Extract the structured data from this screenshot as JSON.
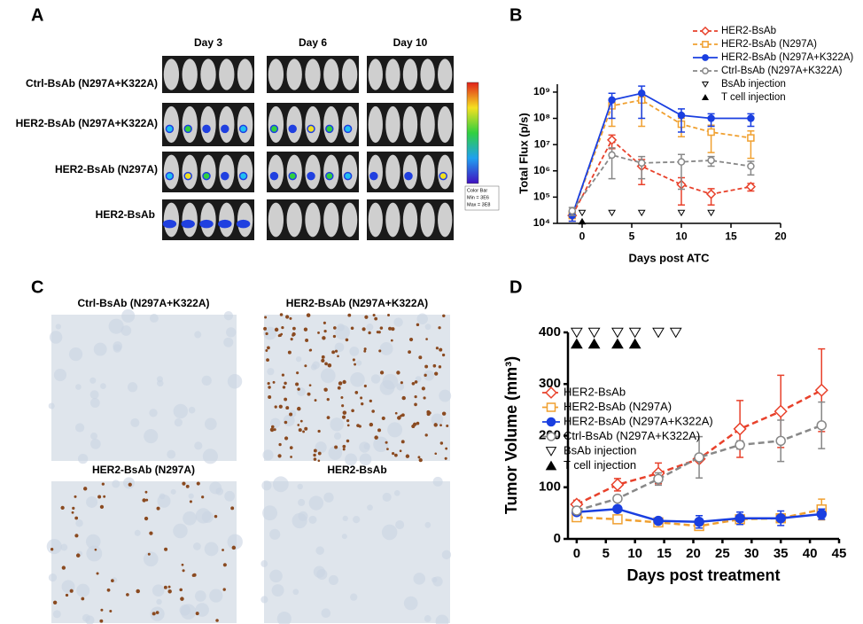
{
  "panels": {
    "a": {
      "label": "A",
      "columns": [
        "Day 3",
        "Day 6",
        "Day 10"
      ],
      "rows": [
        "Ctrl-BsAb (N297A+K322A)",
        "HER2-BsAb (N297A+K322A)",
        "HER2-BsAb (N297A)",
        "HER2-BsAb"
      ],
      "color_bar": {
        "title": "Color Bar",
        "min": "Min = 3E6",
        "max": "Max = 3E8"
      }
    },
    "c": {
      "label": "C",
      "images": [
        "Ctrl-BsAb (N297A+K322A)",
        "HER2-BsAb (N297A+K322A)",
        "HER2-BsAb (N297A)",
        "HER2-BsAb"
      ]
    }
  },
  "chart_data": [
    {
      "type": "line",
      "panel_label": "B",
      "ylabel": "Total Flux (p/s)",
      "xlabel": "Days post ATC",
      "log_y": true,
      "x": [
        -1,
        3,
        6,
        10,
        13,
        17
      ],
      "xlim": [
        -2.5,
        20
      ],
      "xticks": [
        0,
        5,
        10,
        15,
        20
      ],
      "ylim": [
        10000,
        2000000000
      ],
      "yticks": [
        {
          "value": 10000,
          "label": "10⁴"
        },
        {
          "value": 100000,
          "label": "10⁵"
        },
        {
          "value": 1000000,
          "label": "10⁶"
        },
        {
          "value": 10000000,
          "label": "10⁷"
        },
        {
          "value": 100000000,
          "label": "10⁸"
        },
        {
          "value": 1000000000,
          "label": "10⁹"
        }
      ],
      "series": [
        {
          "name": "HER2-BsAb",
          "color": "#e8412b",
          "marker": "diamond-open",
          "line_style": "dashed",
          "values": [
            20000,
            15000000,
            1500000,
            300000,
            130000,
            250000
          ],
          "errors": [
            8000,
            8000000,
            1200000,
            250000,
            80000,
            80000
          ]
        },
        {
          "name": "HER2-BsAb (N297A)",
          "color": "#f0a030",
          "marker": "square-open",
          "line_style": "dashed",
          "values": [
            20000,
            300000000,
            500000000,
            60000000,
            30000000,
            18000000
          ],
          "errors": [
            8000,
            250000000,
            450000000,
            40000000,
            25000000,
            15000000
          ]
        },
        {
          "name": "HER2-BsAb (N297A+K322A)",
          "color": "#1a3fe0",
          "marker": "circle-filled",
          "line_style": "solid",
          "values": [
            20000,
            500000000,
            900000000,
            130000000,
            100000000,
            100000000
          ],
          "errors": [
            8000,
            400000000,
            800000000,
            100000000,
            50000000,
            50000000
          ]
        },
        {
          "name": "Ctrl-BsAb (N297A+K322A)",
          "color": "#888888",
          "marker": "circle-open",
          "line_style": "dashed",
          "values": [
            30000,
            4000000,
            2000000,
            2200000,
            2500000,
            1500000
          ],
          "errors": [
            10000,
            3500000,
            1500000,
            2000000,
            1000000,
            800000
          ]
        }
      ],
      "injections": [
        {
          "name": "BsAb injection",
          "x": [
            0,
            3,
            6,
            10,
            13
          ]
        },
        {
          "name": "T cell injection",
          "x": [
            0
          ]
        }
      ]
    },
    {
      "type": "line",
      "panel_label": "D",
      "ylabel": "Tumor Volume (mm³)",
      "xlabel": "Days post treatment",
      "log_y": false,
      "x": [
        0,
        7,
        14,
        21,
        28,
        35,
        42
      ],
      "xlim": [
        -1.5,
        45
      ],
      "xticks": [
        0,
        5,
        10,
        15,
        20,
        25,
        30,
        35,
        40,
        45
      ],
      "ylim": [
        0,
        400
      ],
      "yticks": [
        0,
        100,
        200,
        300,
        400
      ],
      "series": [
        {
          "name": "HER2-BsAb",
          "color": "#e8412b",
          "marker": "diamond-open",
          "line_style": "dashed",
          "values": [
            67,
            105,
            127,
            155,
            213,
            247,
            288
          ],
          "errors": [
            8,
            12,
            20,
            5,
            55,
            70,
            80
          ]
        },
        {
          "name": "HER2-BsAb (N297A)",
          "color": "#f0a030",
          "marker": "square-open",
          "line_style": "dashed",
          "values": [
            42,
            38,
            32,
            25,
            38,
            40,
            57
          ],
          "errors": [
            5,
            3,
            4,
            5,
            5,
            5,
            20
          ]
        },
        {
          "name": "HER2-BsAb (N297A+K322A)",
          "color": "#1a3fe0",
          "marker": "circle-filled",
          "line_style": "solid",
          "values": [
            52,
            58,
            35,
            33,
            40,
            40,
            48
          ],
          "errors": [
            3,
            3,
            3,
            12,
            12,
            14,
            10
          ]
        },
        {
          "name": "Ctrl-BsAb (N297A+K322A)",
          "color": "#888888",
          "marker": "circle-open",
          "line_style": "dashed",
          "values": [
            55,
            78,
            116,
            158,
            182,
            190,
            220
          ],
          "errors": [
            5,
            6,
            12,
            40,
            8,
            40,
            45
          ]
        }
      ],
      "injections": [
        {
          "name": "BsAb injection",
          "x": [
            0,
            3,
            7,
            10,
            14,
            17
          ]
        },
        {
          "name": "T cell injection",
          "x": [
            0,
            3,
            7,
            10
          ]
        }
      ]
    }
  ]
}
